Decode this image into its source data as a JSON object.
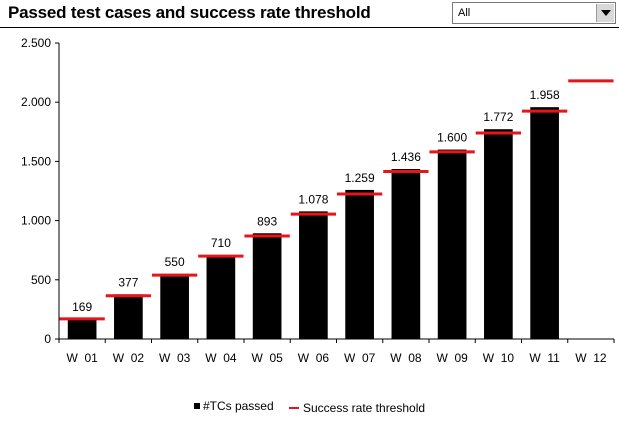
{
  "header": {
    "title": "Passed test cases and success rate threshold",
    "filter": {
      "selected": "All"
    }
  },
  "chart_data": {
    "type": "bar",
    "categories": [
      "W  01",
      "W  02",
      "W  03",
      "W  04",
      "W  05",
      "W  06",
      "W  07",
      "W  08",
      "W  09",
      "W  10",
      "W  11",
      "W  12"
    ],
    "series": [
      {
        "name": "#TCs passed",
        "type": "bar",
        "color": "#000000",
        "values": [
          169,
          377,
          550,
          710,
          893,
          1078,
          1259,
          1436,
          1600,
          1772,
          1958,
          null
        ],
        "labels": [
          "169",
          "377",
          "550",
          "710",
          "893",
          "1.078",
          "1.259",
          "1.436",
          "1.600",
          "1.772",
          "1.958",
          ""
        ]
      },
      {
        "name": "Success rate threshold",
        "type": "marker-line",
        "color": "#e8141b",
        "values": [
          170,
          365,
          540,
          700,
          870,
          1055,
          1225,
          1415,
          1580,
          1740,
          1925,
          2180
        ]
      }
    ],
    "ylim": [
      0,
      2500
    ],
    "yticks": [
      0,
      500,
      1000,
      1500,
      2000,
      2500
    ],
    "ytick_labels": [
      "0",
      "500",
      "1.000",
      "1.500",
      "2.000",
      "2.500"
    ],
    "grid": false,
    "legend_position": "bottom"
  }
}
